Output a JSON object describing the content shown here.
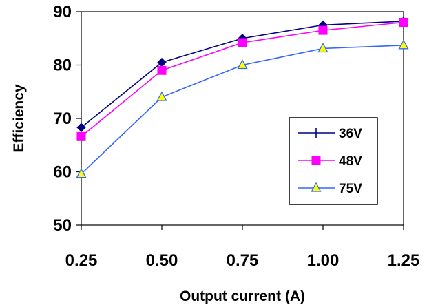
{
  "chart_data": {
    "type": "line",
    "x": [
      0.25,
      0.5,
      0.75,
      1.0,
      1.25
    ],
    "x_tick_labels": [
      "0.25",
      "0.50",
      "0.75",
      "1.00",
      "1.25"
    ],
    "y_ticks": [
      "50",
      "60",
      "70",
      "80",
      "90"
    ],
    "xlabel": "Output current (A)",
    "ylabel": "Efficiency",
    "ylim": [
      50,
      90
    ],
    "xlim": [
      0.25,
      1.25
    ],
    "grid": false,
    "legend_position": "bottom-right",
    "series": [
      {
        "name": "36V",
        "color": "#000080",
        "marker": "cross",
        "values": [
          68.3,
          80.5,
          85.0,
          87.5,
          88.2
        ]
      },
      {
        "name": "48V",
        "color": "#ff00ff",
        "marker": "square",
        "values": [
          66.6,
          79.0,
          84.2,
          86.5,
          88.0
        ]
      },
      {
        "name": "75V",
        "color": "#3366ff",
        "marker": "triangle",
        "values": [
          59.6,
          74.0,
          80.0,
          83.1,
          83.7
        ]
      }
    ]
  }
}
